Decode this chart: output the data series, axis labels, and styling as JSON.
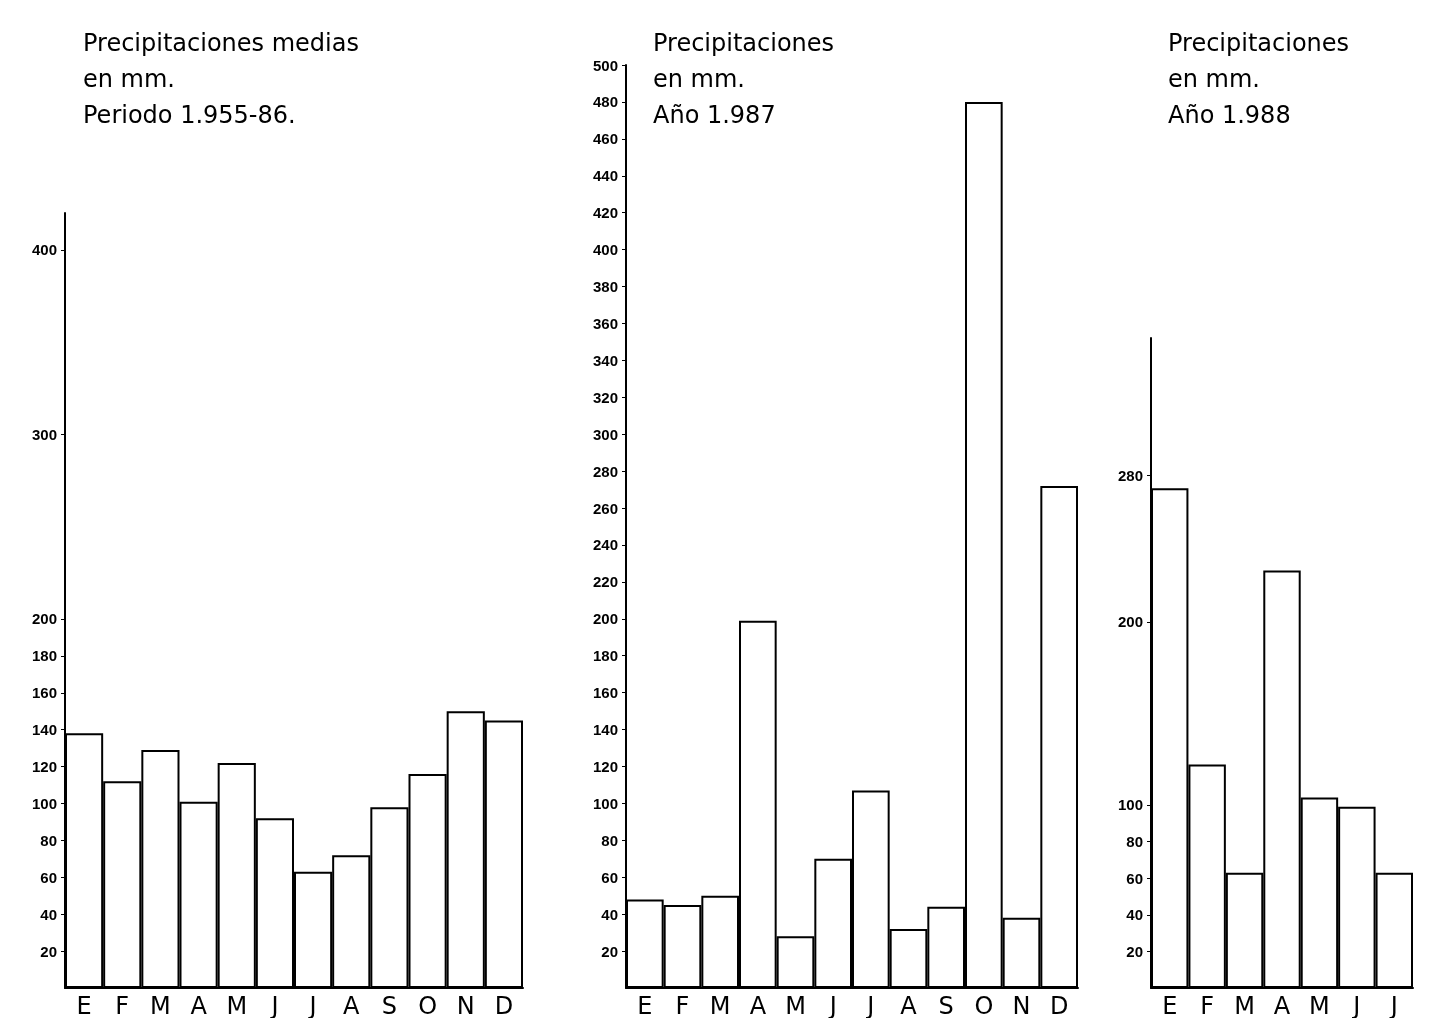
{
  "chart_data": [
    {
      "type": "bar",
      "title": "Precipitaciones medias\nen mm.\nPeriodo 1.955-86.",
      "categories": [
        "E",
        "F",
        "M",
        "A",
        "M",
        "J",
        "J",
        "A",
        "S",
        "O",
        "N",
        "D"
      ],
      "values": [
        138,
        112,
        129,
        101,
        122,
        92,
        63,
        72,
        98,
        116,
        150,
        145
      ],
      "color": "#ffffff",
      "ylim": [
        0,
        420
      ],
      "yticks": [
        20,
        40,
        60,
        80,
        100,
        120,
        140,
        160,
        180,
        200,
        300,
        400
      ]
    },
    {
      "type": "bar",
      "title": "Precipitaciones\nen mm.\nAño 1.987",
      "categories": [
        "E",
        "F",
        "M",
        "A",
        "M",
        "J",
        "J",
        "A",
        "S",
        "O",
        "N",
        "D"
      ],
      "values": [
        48,
        45,
        50,
        199,
        28,
        70,
        107,
        32,
        44,
        480,
        38,
        272
      ],
      "color": "#ffffff",
      "ylim": [
        0,
        500
      ],
      "yticks": [
        20,
        40,
        60,
        80,
        100,
        120,
        140,
        160,
        180,
        200,
        220,
        240,
        260,
        280,
        300,
        320,
        340,
        360,
        380,
        400,
        420,
        440,
        460,
        480,
        500
      ]
    },
    {
      "type": "bar",
      "title": "Precipitaciones\nen mm.\nAño 1.988",
      "categories": [
        "E",
        "F",
        "M",
        "A",
        "M",
        "J",
        "J"
      ],
      "values": [
        273,
        122,
        63,
        228,
        104,
        99,
        63
      ],
      "color": "#ffffff",
      "ylim": [
        0,
        355
      ],
      "yticks": [
        20,
        40,
        60,
        80,
        100,
        200,
        280
      ]
    }
  ]
}
